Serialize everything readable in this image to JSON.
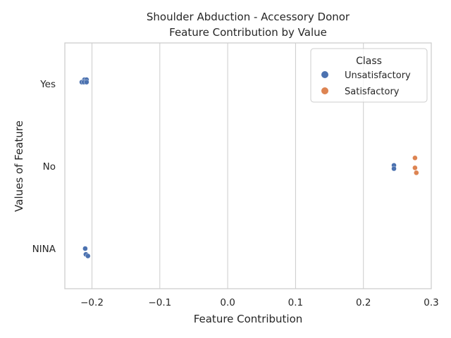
{
  "chart_data": {
    "type": "scatter",
    "title_lines": [
      "Shoulder Abduction - Accessory Donor",
      "Feature Contribution by Value"
    ],
    "xlabel": "Feature Contribution",
    "ylabel": "Values of Feature",
    "xlim": [
      -0.24,
      0.3
    ],
    "x_ticks": [
      -0.2,
      -0.1,
      0.0,
      0.1,
      0.2,
      0.3
    ],
    "x_tick_labels": [
      "−0.2",
      "−0.1",
      "0.0",
      "0.1",
      "0.2",
      "0.3"
    ],
    "categories": [
      "Yes",
      "No",
      "NINA"
    ],
    "grid": true,
    "legend": {
      "title": "Class",
      "placement": "top-right",
      "entries": [
        "Unsatisfactory",
        "Satisfactory"
      ]
    },
    "colors": {
      "Unsatisfactory": "#4c72b0",
      "Satisfactory": "#dd8452"
    },
    "series": [
      {
        "name": "Unsatisfactory",
        "points": [
          {
            "x": -0.211,
            "category": "Yes",
            "jitter": -0.05
          },
          {
            "x": -0.208,
            "category": "Yes",
            "jitter": -0.05
          },
          {
            "x": -0.215,
            "category": "Yes",
            "jitter": -0.02
          },
          {
            "x": -0.212,
            "category": "Yes",
            "jitter": -0.02
          },
          {
            "x": -0.208,
            "category": "Yes",
            "jitter": -0.02
          },
          {
            "x": 0.245,
            "category": "No",
            "jitter": -0.01
          },
          {
            "x": 0.245,
            "category": "No",
            "jitter": 0.03
          },
          {
            "x": -0.21,
            "category": "NINA",
            "jitter": 0.0
          },
          {
            "x": -0.209,
            "category": "NINA",
            "jitter": 0.07
          },
          {
            "x": -0.206,
            "category": "NINA",
            "jitter": 0.09
          }
        ]
      },
      {
        "name": "Satisfactory",
        "points": [
          {
            "x": 0.276,
            "category": "No",
            "jitter": -0.1
          },
          {
            "x": 0.276,
            "category": "No",
            "jitter": 0.02
          },
          {
            "x": 0.278,
            "category": "No",
            "jitter": 0.08
          }
        ]
      }
    ]
  }
}
